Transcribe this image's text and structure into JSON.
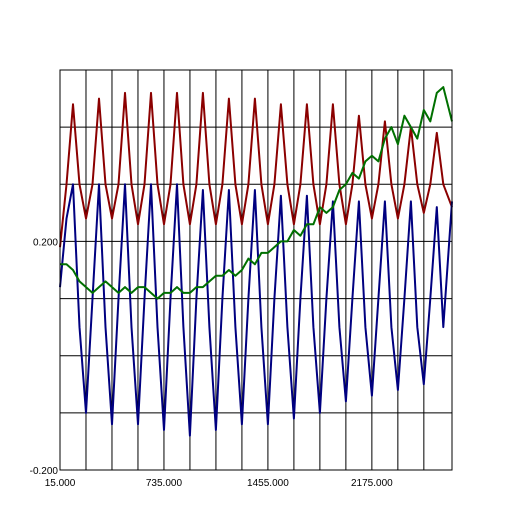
{
  "chart_data": {
    "type": "line",
    "title": "",
    "xlabel": "",
    "ylabel": "",
    "xlim": [
      15,
      2730
    ],
    "ylim": [
      -0.2,
      0.5
    ],
    "grid": true,
    "x_ticks": [
      {
        "value": 15,
        "label": "15.000"
      },
      {
        "value": 735,
        "label": "735.000"
      },
      {
        "value": 1455,
        "label": "1455.000"
      },
      {
        "value": 2175,
        "label": "2175.000"
      }
    ],
    "x_gridlines": [
      15,
      195,
      375,
      555,
      735,
      915,
      1095,
      1275,
      1455,
      1635,
      1815,
      1995,
      2175,
      2355,
      2535,
      2730
    ],
    "y_ticks": [
      {
        "value": 0.2,
        "label": "0.200"
      },
      {
        "value": -0.2,
        "label": "-0.200"
      }
    ],
    "y_gridlines": [
      -0.2,
      -0.1,
      0.0,
      0.1,
      0.2,
      0.3,
      0.4,
      0.5
    ],
    "series": [
      {
        "color": "#8b0000",
        "x": [
          15,
          60,
          105,
          150,
          195,
          240,
          285,
          330,
          375,
          420,
          465,
          510,
          555,
          600,
          645,
          690,
          735,
          780,
          825,
          870,
          915,
          960,
          1005,
          1050,
          1095,
          1140,
          1185,
          1230,
          1275,
          1320,
          1365,
          1410,
          1455,
          1500,
          1545,
          1590,
          1635,
          1680,
          1725,
          1770,
          1815,
          1860,
          1905,
          1950,
          1995,
          2040,
          2085,
          2130,
          2175,
          2220,
          2265,
          2310,
          2355,
          2400,
          2445,
          2490,
          2535,
          2580,
          2625,
          2670,
          2730
        ],
        "values": [
          0.19,
          0.3,
          0.44,
          0.3,
          0.24,
          0.3,
          0.45,
          0.3,
          0.24,
          0.3,
          0.46,
          0.3,
          0.23,
          0.3,
          0.46,
          0.3,
          0.23,
          0.3,
          0.46,
          0.3,
          0.23,
          0.3,
          0.46,
          0.3,
          0.23,
          0.3,
          0.45,
          0.3,
          0.23,
          0.3,
          0.45,
          0.3,
          0.23,
          0.3,
          0.44,
          0.3,
          0.23,
          0.3,
          0.44,
          0.3,
          0.23,
          0.3,
          0.44,
          0.3,
          0.23,
          0.3,
          0.42,
          0.3,
          0.24,
          0.3,
          0.41,
          0.3,
          0.24,
          0.3,
          0.4,
          0.3,
          0.25,
          0.3,
          0.39,
          0.3,
          0.26
        ]
      },
      {
        "color": "#000080",
        "x": [
          15,
          60,
          105,
          150,
          195,
          240,
          285,
          330,
          375,
          420,
          465,
          510,
          555,
          600,
          645,
          690,
          735,
          780,
          825,
          870,
          915,
          960,
          1005,
          1050,
          1095,
          1140,
          1185,
          1230,
          1275,
          1320,
          1365,
          1410,
          1455,
          1500,
          1545,
          1590,
          1635,
          1680,
          1725,
          1770,
          1815,
          1860,
          1905,
          1950,
          1995,
          2040,
          2085,
          2130,
          2175,
          2220,
          2265,
          2310,
          2355,
          2400,
          2445,
          2490,
          2535,
          2580,
          2625,
          2670,
          2730
        ],
        "values": [
          0.12,
          0.24,
          0.3,
          0.05,
          -0.1,
          0.1,
          0.3,
          0.05,
          -0.12,
          0.1,
          0.3,
          0.05,
          -0.12,
          0.1,
          0.3,
          0.05,
          -0.13,
          0.1,
          0.3,
          0.05,
          -0.14,
          0.1,
          0.29,
          0.05,
          -0.13,
          0.1,
          0.29,
          0.05,
          -0.12,
          0.1,
          0.29,
          0.05,
          -0.12,
          0.1,
          0.28,
          0.05,
          -0.11,
          0.1,
          0.28,
          0.05,
          -0.1,
          0.1,
          0.27,
          0.05,
          -0.08,
          0.1,
          0.27,
          0.05,
          -0.07,
          0.1,
          0.27,
          0.05,
          -0.06,
          0.1,
          0.27,
          0.05,
          -0.05,
          0.1,
          0.26,
          0.05,
          0.27
        ]
      },
      {
        "color": "#007000",
        "x": [
          15,
          60,
          105,
          150,
          195,
          240,
          285,
          330,
          375,
          420,
          465,
          510,
          555,
          600,
          645,
          690,
          735,
          780,
          825,
          870,
          915,
          960,
          1005,
          1050,
          1095,
          1140,
          1185,
          1230,
          1275,
          1320,
          1365,
          1410,
          1455,
          1500,
          1545,
          1590,
          1635,
          1680,
          1725,
          1770,
          1815,
          1860,
          1905,
          1950,
          1995,
          2040,
          2085,
          2130,
          2175,
          2220,
          2265,
          2310,
          2355,
          2400,
          2445,
          2490,
          2535,
          2580,
          2625,
          2670,
          2730
        ],
        "values": [
          0.16,
          0.16,
          0.15,
          0.13,
          0.12,
          0.11,
          0.12,
          0.13,
          0.12,
          0.11,
          0.12,
          0.11,
          0.12,
          0.12,
          0.11,
          0.1,
          0.11,
          0.11,
          0.12,
          0.11,
          0.11,
          0.12,
          0.12,
          0.13,
          0.14,
          0.14,
          0.15,
          0.14,
          0.15,
          0.17,
          0.16,
          0.18,
          0.18,
          0.19,
          0.2,
          0.2,
          0.22,
          0.21,
          0.23,
          0.23,
          0.26,
          0.25,
          0.26,
          0.29,
          0.3,
          0.32,
          0.31,
          0.34,
          0.35,
          0.34,
          0.38,
          0.4,
          0.37,
          0.42,
          0.4,
          0.38,
          0.43,
          0.41,
          0.46,
          0.47,
          0.41
        ]
      }
    ]
  }
}
